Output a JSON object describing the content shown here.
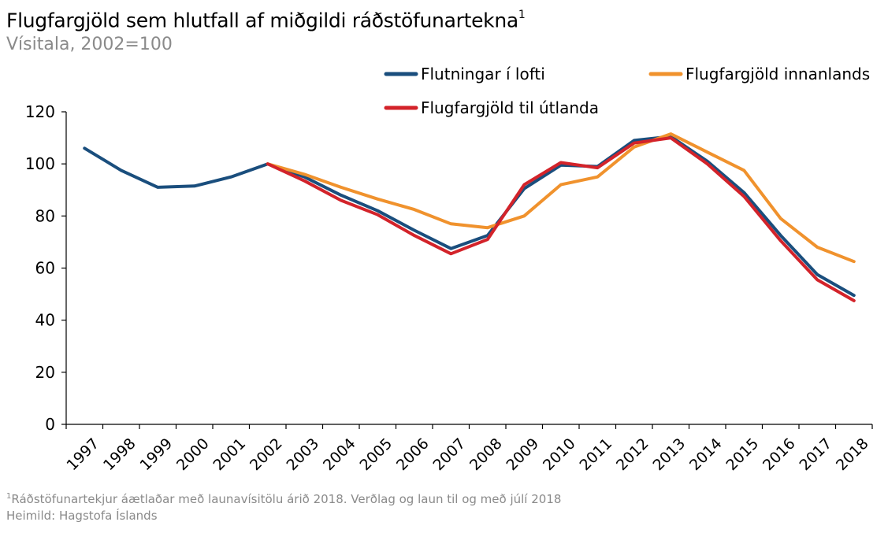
{
  "title": "Flugfargjöld sem hlutfall af miðgildi ráðstöfunartekna",
  "title_sup": "1",
  "subtitle": "Vísitala, 2002=100",
  "footnote_sup": "1",
  "footnote": "Ráðstöfunartekjur áætlaðar með launavísitölu árið 2018. Verðlag og laun til og með júlí 2018",
  "source": "Heimild: Hagstofa Íslands",
  "chart_data": {
    "type": "line",
    "categories": [
      "1997",
      "1998",
      "1999",
      "2000",
      "2001",
      "2002",
      "2003",
      "2004",
      "2005",
      "2006",
      "2007",
      "2008",
      "2009",
      "2010",
      "2011",
      "2012",
      "2013",
      "2014",
      "2015",
      "2016",
      "2017",
      "2018"
    ],
    "ylim": [
      0,
      120
    ],
    "yticks": [
      0,
      20,
      40,
      60,
      80,
      100,
      120
    ],
    "grid": false,
    "legend_position": "top",
    "series": [
      {
        "name": "Flutningar í lofti",
        "color": "#1a4e7d",
        "values": [
          106,
          97.5,
          91,
          91.5,
          95,
          100,
          95,
          88,
          82,
          74.5,
          67.5,
          72.5,
          90.5,
          99.5,
          99,
          109,
          110.5,
          101,
          89,
          72.5,
          57.5,
          49.5
        ]
      },
      {
        "name": "Flugfargjöld innanlands",
        "color": "#f0922d",
        "values": [
          null,
          null,
          null,
          null,
          null,
          100,
          96,
          91,
          86.5,
          82.5,
          77,
          75.5,
          80,
          92,
          95,
          106.5,
          111.5,
          104.5,
          97.5,
          79,
          68,
          62.5
        ]
      },
      {
        "name": "Flugfargjöld til útlanda",
        "color": "#d3232a",
        "values": [
          null,
          null,
          null,
          null,
          null,
          100,
          93.5,
          86,
          80.5,
          72.5,
          65.5,
          71,
          92,
          100.5,
          98.5,
          108,
          110,
          100,
          87.5,
          70.5,
          55.5,
          47.5
        ]
      }
    ]
  }
}
